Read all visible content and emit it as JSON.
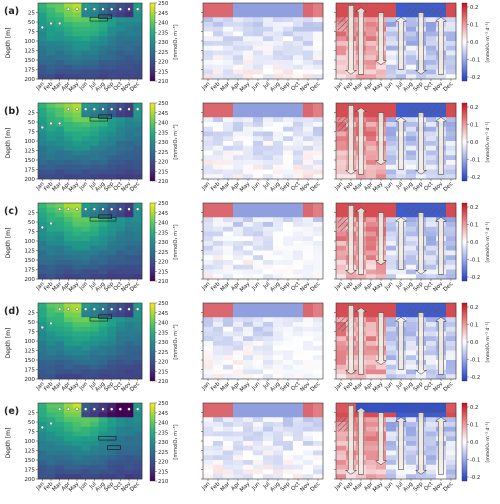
{
  "chart_data": [
    {
      "type": "heatmap",
      "panel_label": "(a)",
      "months": [
        "Jan",
        "Feb",
        "Mar",
        "Apr",
        "May",
        "Jun",
        "Jul",
        "Aug",
        "Sep",
        "Oct",
        "Nov",
        "Dec"
      ],
      "depth_ylabel": "Depth [m]",
      "depth_ticks": [
        25,
        50,
        75,
        100,
        125,
        150,
        175,
        200
      ],
      "conc_colorbar": {
        "ticks": [
          250,
          245,
          240,
          235,
          230,
          225,
          220,
          215,
          210
        ],
        "label": "[mmolO₂ m⁻³]"
      },
      "rate_colorbar": {
        "ticks": [
          "0.2",
          "0.1",
          "0.0",
          "-0.1",
          "-0.2"
        ],
        "label": "[mmolO₂ m⁻³ d⁻¹]"
      }
    },
    {
      "type": "heatmap",
      "panel_label": "(b)",
      "months": [
        "Jan",
        "Feb",
        "Mar",
        "Apr",
        "May",
        "Jun",
        "Jul",
        "Aug",
        "Sep",
        "Oct",
        "Nov",
        "Dec"
      ],
      "depth_ylabel": "Depth [m]",
      "depth_ticks": [
        25,
        50,
        75,
        100,
        125,
        150,
        175,
        200
      ],
      "conc_colorbar": {
        "ticks": [
          250,
          245,
          240,
          235,
          230,
          225,
          220,
          215,
          210
        ],
        "label": "[mmolO₂ m⁻³]"
      },
      "rate_colorbar": {
        "ticks": [
          "0.2",
          "0.1",
          "0.0",
          "-0.1",
          "-0.2"
        ],
        "label": "[mmolO₂ m⁻³ d⁻¹]"
      }
    },
    {
      "type": "heatmap",
      "panel_label": "(c)",
      "months": [
        "Jan",
        "Feb",
        "Mar",
        "Apr",
        "May",
        "Jun",
        "Jul",
        "Aug",
        "Sep",
        "Oct",
        "Nov",
        "Dec"
      ],
      "depth_ylabel": "Depth [m]",
      "depth_ticks": [
        25,
        50,
        75,
        100,
        125,
        150,
        175,
        200
      ],
      "conc_colorbar": {
        "ticks": [
          250,
          245,
          240,
          235,
          230,
          225,
          220,
          215,
          210
        ],
        "label": "[mmolO₂ m⁻³]"
      },
      "rate_colorbar": {
        "ticks": [
          "0.2",
          "0.1",
          "0.0",
          "-0.1",
          "-0.2"
        ],
        "label": "[mmolO₂ m⁻³ d⁻¹]"
      }
    },
    {
      "type": "heatmap",
      "panel_label": "(d)",
      "months": [
        "Jan",
        "Feb",
        "Mar",
        "Apr",
        "May",
        "Jun",
        "Jul",
        "Aug",
        "Sep",
        "Oct",
        "Nov",
        "Dec"
      ],
      "depth_ylabel": "Depth [m]",
      "depth_ticks": [
        25,
        50,
        75,
        100,
        125,
        150,
        175,
        200
      ],
      "conc_colorbar": {
        "ticks": [
          250,
          245,
          240,
          235,
          230,
          225,
          220,
          215,
          210
        ],
        "label": "[mmolO₂ m⁻³]"
      },
      "rate_colorbar": {
        "ticks": [
          "0.2",
          "0.1",
          "0.0",
          "-0.1",
          "-0.2"
        ],
        "label": "[mmolO₂ m⁻³ d⁻¹]"
      }
    },
    {
      "type": "heatmap",
      "panel_label": "(e)",
      "months": [
        "Jan",
        "Feb",
        "Mar",
        "Apr",
        "May",
        "Jun",
        "Jul",
        "Aug",
        "Sep",
        "Oct",
        "Nov",
        "Dec"
      ],
      "depth_ylabel": "Depth [m]",
      "depth_ticks": [
        25,
        50,
        75,
        100,
        125,
        150,
        175,
        200
      ],
      "conc_colorbar": {
        "ticks": [
          250,
          245,
          240,
          235,
          230,
          225,
          220,
          215,
          210
        ],
        "label": "[mmolO₂ m⁻³]"
      },
      "rate_colorbar": {
        "ticks": [
          "0.2",
          "0.1",
          "0.0",
          "-0.1",
          "-0.2"
        ],
        "label": "[mmolO₂ m⁻³ d⁻¹]"
      }
    }
  ],
  "colors": {
    "viridis": [
      "#440154",
      "#482878",
      "#3e4a89",
      "#31688e",
      "#26828e",
      "#1f9e89",
      "#35b779",
      "#6ece58",
      "#b5de2b",
      "#fde725"
    ],
    "rate_pos": "#c8101a",
    "rate_neg": "#1f3fbf",
    "rate_zero": "#ffffff"
  }
}
